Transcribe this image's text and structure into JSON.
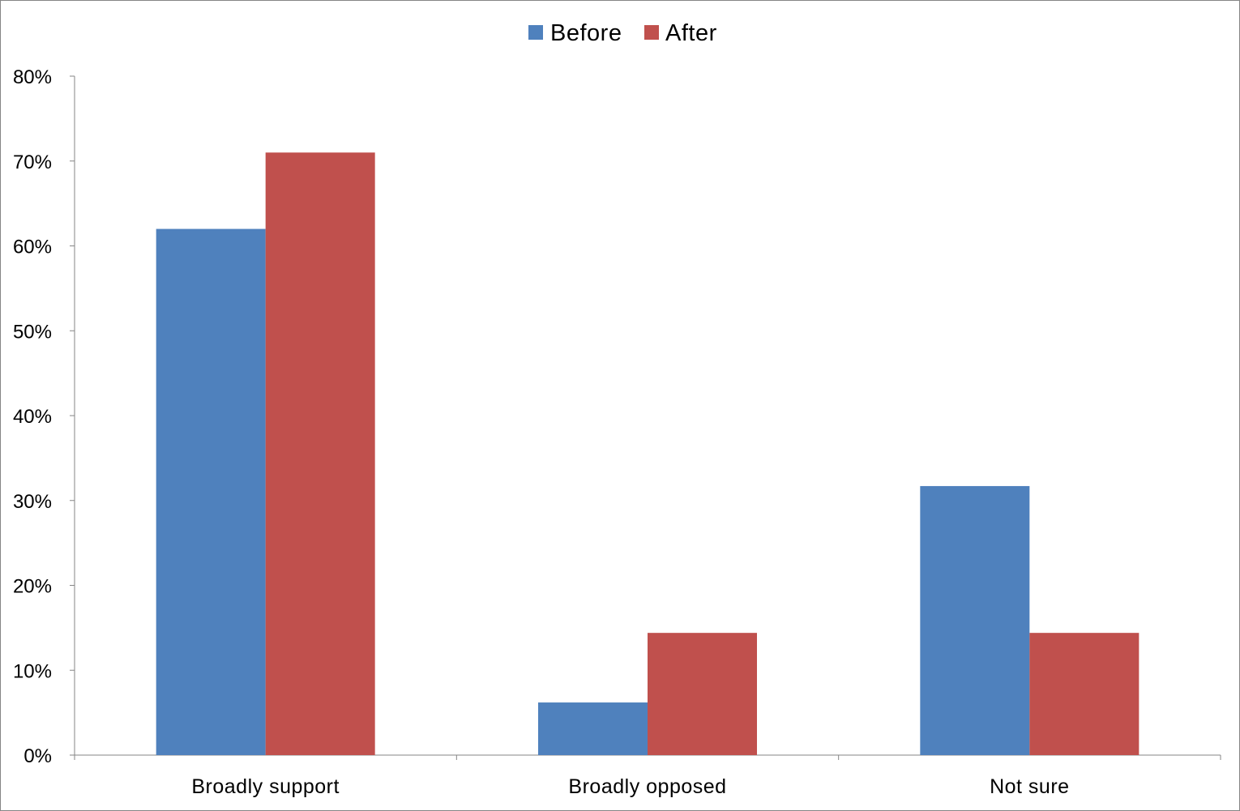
{
  "chart_data": {
    "type": "bar",
    "title": "",
    "xlabel": "",
    "ylabel": "",
    "categories": [
      "Broadly support",
      "Broadly opposed",
      "Not sure"
    ],
    "series": [
      {
        "name": "Before",
        "values": [
          62,
          6.2,
          31.7
        ],
        "color": "#4F81BD"
      },
      {
        "name": "After",
        "values": [
          71,
          14.4,
          14.4
        ],
        "color": "#C0504D"
      }
    ],
    "ylim": [
      0,
      80
    ],
    "yticks": [
      0,
      10,
      20,
      30,
      40,
      50,
      60,
      70,
      80
    ],
    "ytick_labels": [
      "0%",
      "10%",
      "20%",
      "30%",
      "40%",
      "50%",
      "60%",
      "70%",
      "80%"
    ],
    "grid": false,
    "legend_position": "top-center"
  }
}
